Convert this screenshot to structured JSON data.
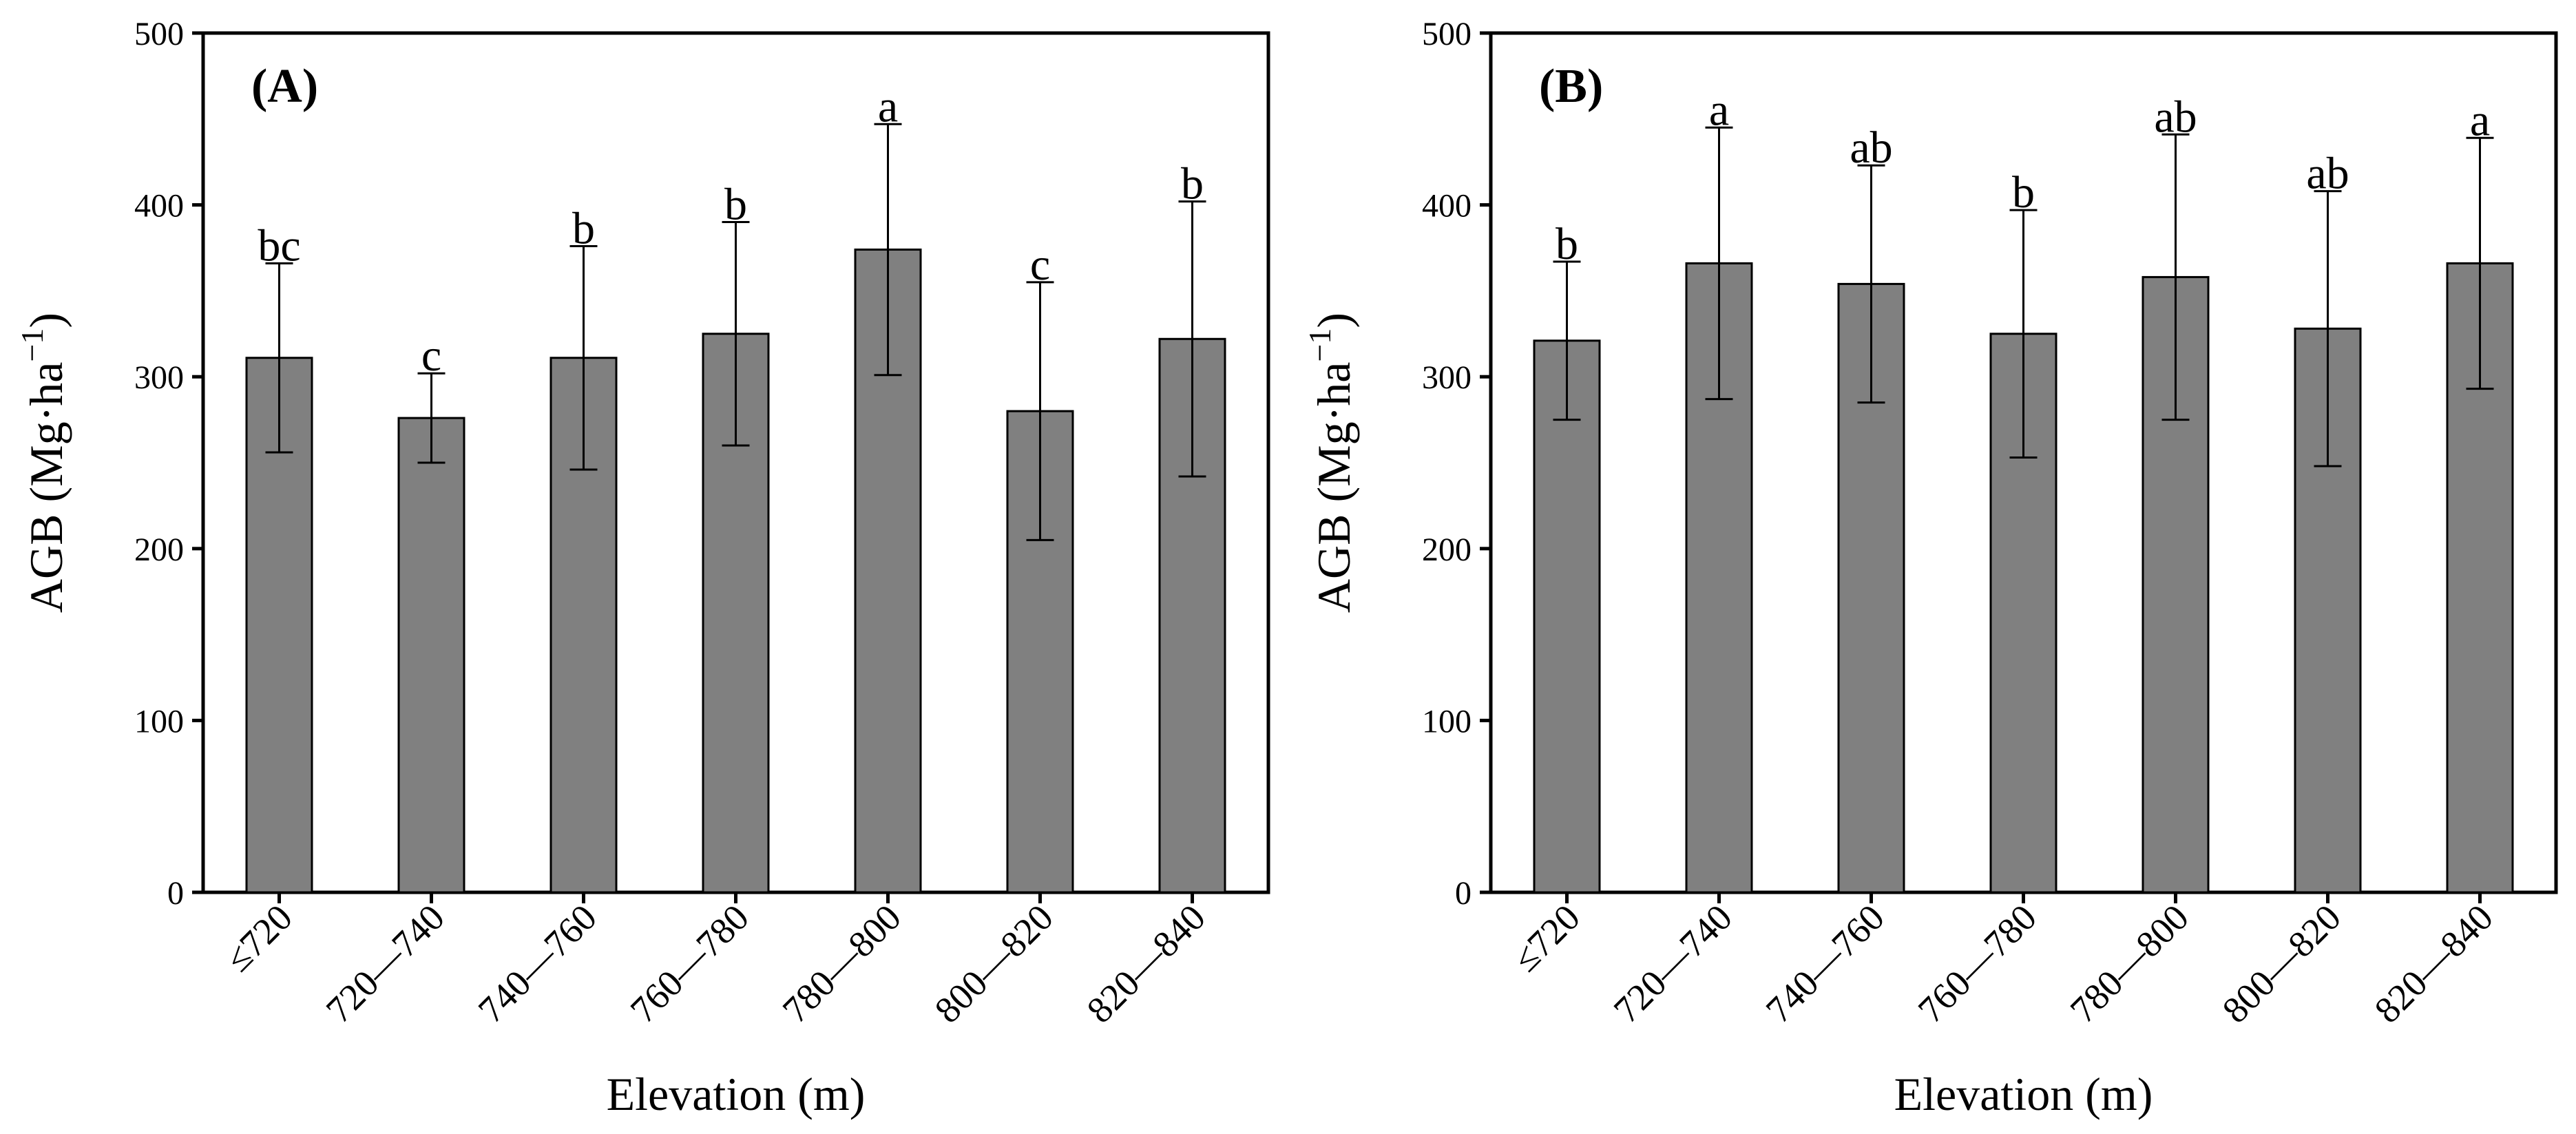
{
  "chart_data": [
    {
      "type": "bar",
      "panel_label": "(A)",
      "xlabel": "Elevation (m)",
      "ylabel_main": "AGB (Mg·ha",
      "ylabel_sup": "−1",
      "ylabel_close": ")",
      "ylim": [
        0,
        500
      ],
      "yticks": [
        "0",
        "100",
        "200",
        "300",
        "400",
        "500"
      ],
      "categories": [
        "≤720",
        "720—740",
        "740—760",
        "760—780",
        "780—800",
        "800—820",
        "820—840"
      ],
      "values": [
        311,
        276,
        311,
        325,
        374,
        280,
        322
      ],
      "errors": [
        55,
        26,
        65,
        65,
        73,
        75,
        80
      ],
      "significance": [
        "bc",
        "c",
        "b",
        "b",
        "a",
        "c",
        "b"
      ],
      "bar_color": "#808080"
    },
    {
      "type": "bar",
      "panel_label": "(B)",
      "xlabel": "Elevation (m)",
      "ylabel_main": "AGB (Mg·ha",
      "ylabel_sup": "−1",
      "ylabel_close": ")",
      "ylim": [
        0,
        500
      ],
      "yticks": [
        "0",
        "100",
        "200",
        "300",
        "400",
        "500"
      ],
      "categories": [
        "≤720",
        "720—740",
        "740—760",
        "760—780",
        "780—800",
        "800—820",
        "820—840"
      ],
      "values": [
        321,
        366,
        354,
        325,
        358,
        328,
        366
      ],
      "errors": [
        46,
        79,
        69,
        72,
        83,
        80,
        73
      ],
      "significance": [
        "b",
        "a",
        "ab",
        "b",
        "ab",
        "ab",
        "a"
      ],
      "bar_color": "#808080"
    }
  ]
}
